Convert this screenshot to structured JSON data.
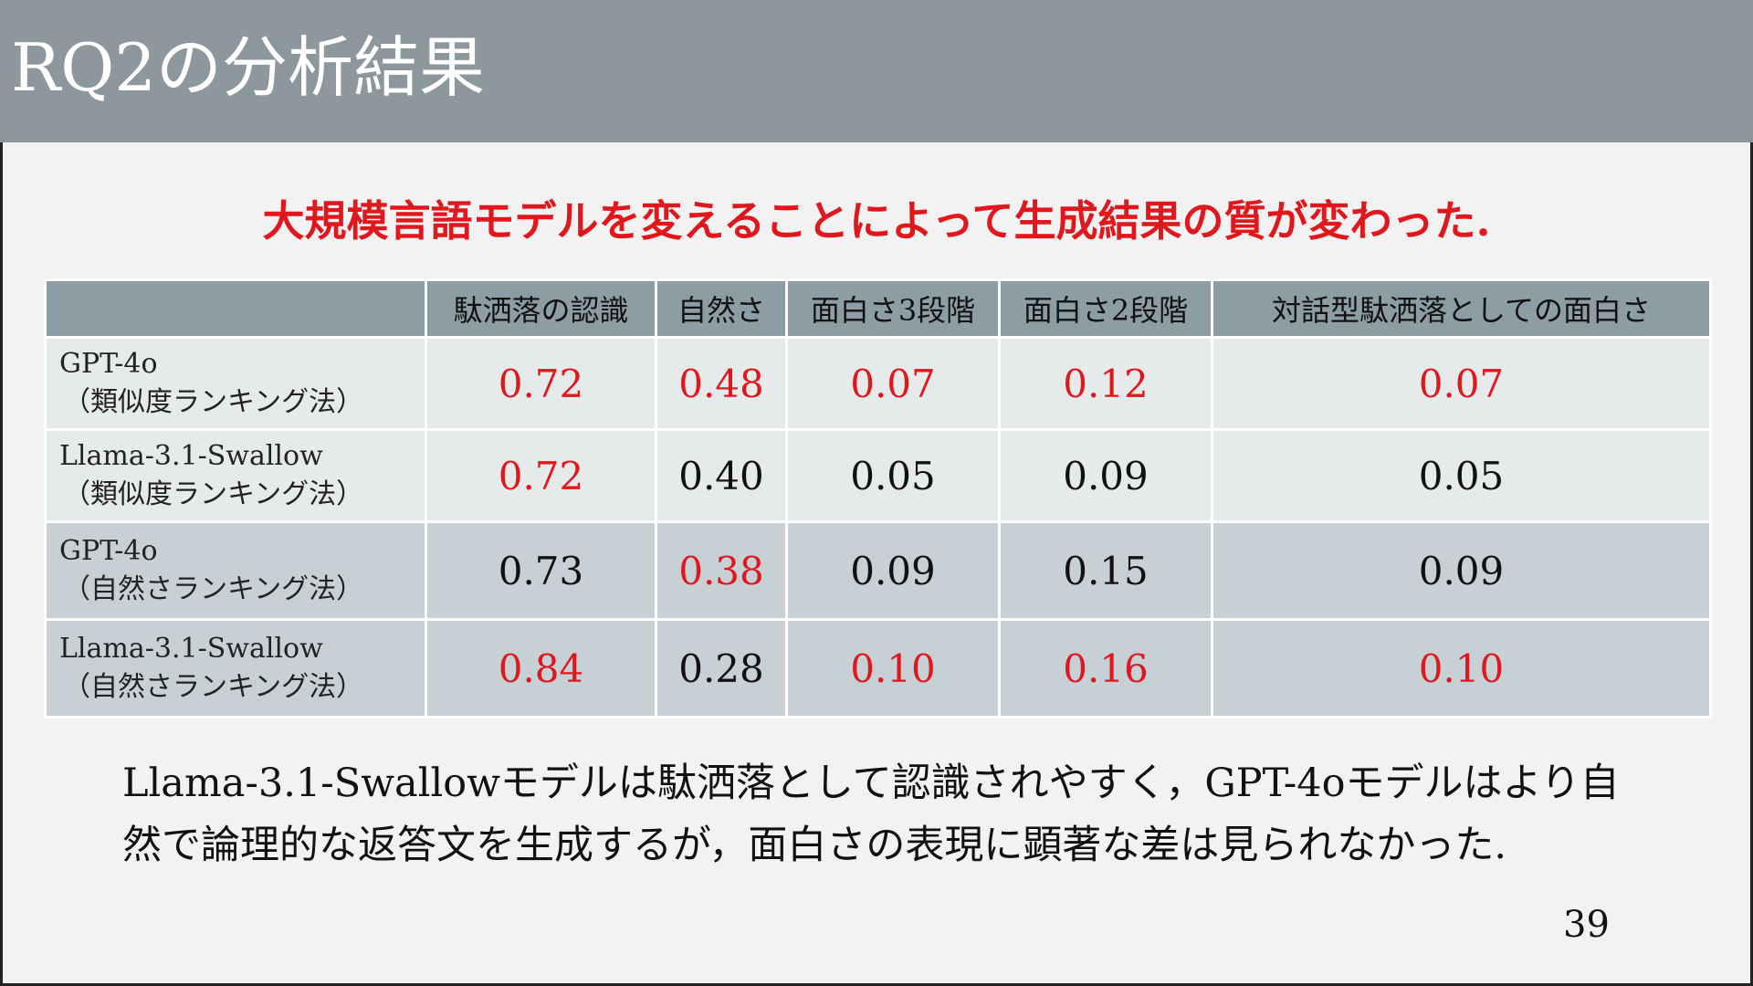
{
  "slide": {
    "title": "RQ2の分析結果",
    "headline": "大規模言語モデルを変えることによって生成結果の質が変わった.",
    "page_number": "39",
    "summary": "Llama-3.1-Swallowモデルは駄洒落として認識されやすく，GPT-4oモデルはより自然で論理的な返答文を生成するが，面白さの表現に顕著な差は見られなかった."
  },
  "table": {
    "headers": [
      "",
      "駄洒落の認識",
      "自然さ",
      "面白さ3段階",
      "面白さ2段階",
      "対話型駄洒落としての面白さ"
    ],
    "rows": [
      {
        "model": "GPT-4o",
        "method": "（類似度ランキング法）",
        "cells": [
          {
            "value": "0.72",
            "highlight": true
          },
          {
            "value": "0.48",
            "highlight": true
          },
          {
            "value": "0.07",
            "highlight": true
          },
          {
            "value": "0.12",
            "highlight": true
          },
          {
            "value": "0.07",
            "highlight": true
          }
        ]
      },
      {
        "model": "Llama-3.1-Swallow",
        "method": "（類似度ランキング法）",
        "cells": [
          {
            "value": "0.72",
            "highlight": true
          },
          {
            "value": "0.40",
            "highlight": false
          },
          {
            "value": "0.05",
            "highlight": false
          },
          {
            "value": "0.09",
            "highlight": false
          },
          {
            "value": "0.05",
            "highlight": false
          }
        ]
      },
      {
        "model": "GPT-4o",
        "method": "（自然さランキング法）",
        "cells": [
          {
            "value": "0.73",
            "highlight": false
          },
          {
            "value": "0.38",
            "highlight": true
          },
          {
            "value": "0.09",
            "highlight": false
          },
          {
            "value": "0.15",
            "highlight": false
          },
          {
            "value": "0.09",
            "highlight": false
          }
        ]
      },
      {
        "model": "Llama-3.1-Swallow",
        "method": "（自然さランキング法）",
        "cells": [
          {
            "value": "0.84",
            "highlight": true
          },
          {
            "value": "0.28",
            "highlight": false
          },
          {
            "value": "0.10",
            "highlight": true
          },
          {
            "value": "0.16",
            "highlight": true
          },
          {
            "value": "0.10",
            "highlight": true
          }
        ]
      }
    ]
  },
  "colors": {
    "highlight": "#e0181e",
    "title_bar": "#8c989d",
    "header_row": "#8c9da4"
  }
}
